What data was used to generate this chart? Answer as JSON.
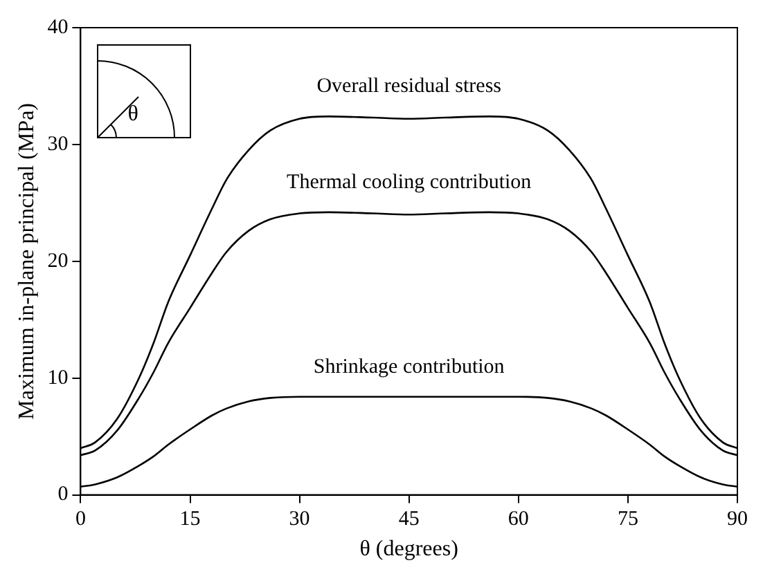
{
  "chart_data": {
    "type": "line",
    "xlabel": "θ (degrees)",
    "ylabel": "Maximum in-plane principal (MPa)",
    "xlim": [
      0,
      90
    ],
    "xticks": [
      0,
      15,
      30,
      45,
      60,
      75,
      90
    ],
    "ylim": [
      0,
      40
    ],
    "yticks": [
      0,
      10,
      20,
      30,
      40
    ],
    "grid": false,
    "legend": false,
    "marker": "none",
    "line_style": "solid",
    "annotations": [
      "θ"
    ],
    "x": [
      0,
      2,
      5,
      8,
      10,
      12,
      15,
      18,
      20,
      23,
      26,
      30,
      34,
      40,
      45,
      50,
      56,
      60,
      64,
      67,
      70,
      72,
      75,
      78,
      80,
      82,
      85,
      88,
      90
    ],
    "series": [
      {
        "name": "Overall residual stress",
        "color": "#000000",
        "values": [
          4.0,
          4.5,
          6.5,
          10,
          13,
          16.5,
          20.5,
          24.5,
          27,
          29.5,
          31.2,
          32.2,
          32.4,
          32.3,
          32.2,
          32.3,
          32.4,
          32.2,
          31.2,
          29.5,
          27,
          24.5,
          20.5,
          16.5,
          13,
          10,
          6.5,
          4.5,
          4.0
        ]
      },
      {
        "name": "Thermal cooling contribution",
        "color": "#000000",
        "values": [
          3.4,
          3.8,
          5.5,
          8.3,
          10.5,
          13,
          16,
          19,
          20.8,
          22.6,
          23.6,
          24.1,
          24.2,
          24.1,
          24.0,
          24.1,
          24.2,
          24.1,
          23.6,
          22.6,
          20.8,
          19,
          16,
          13,
          10.5,
          8.3,
          5.5,
          3.8,
          3.4
        ]
      },
      {
        "name": "Shrinkage contribution",
        "color": "#000000",
        "values": [
          0.7,
          0.9,
          1.5,
          2.5,
          3.3,
          4.3,
          5.6,
          6.8,
          7.4,
          8.0,
          8.3,
          8.4,
          8.4,
          8.4,
          8.4,
          8.4,
          8.4,
          8.4,
          8.3,
          8.0,
          7.4,
          6.8,
          5.6,
          4.3,
          3.3,
          2.5,
          1.5,
          0.9,
          0.7
        ]
      }
    ]
  }
}
